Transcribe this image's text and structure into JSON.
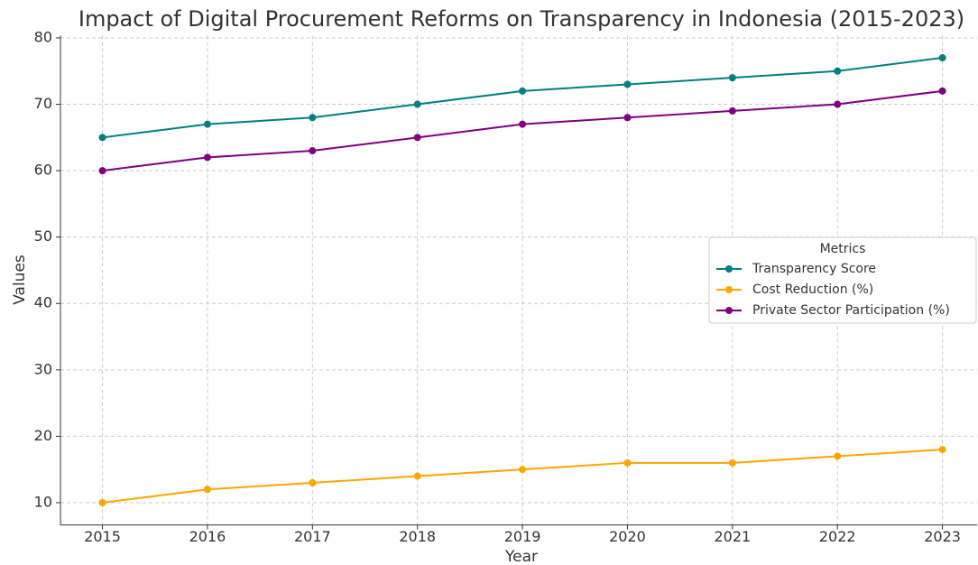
{
  "chart_data": {
    "type": "line",
    "title": "Impact of Digital Procurement Reforms on Transparency in Indonesia (2015-2023)",
    "xlabel": "Year",
    "ylabel": "Values",
    "x": [
      2015,
      2016,
      2017,
      2018,
      2019,
      2020,
      2021,
      2022,
      2023
    ],
    "series": [
      {
        "name": "Transparency Score",
        "color": "#008080",
        "values": [
          65,
          67,
          68,
          70,
          72,
          73,
          74,
          75,
          77
        ]
      },
      {
        "name": "Cost Reduction (%)",
        "color": "#ffa500",
        "values": [
          10,
          12,
          13,
          14,
          15,
          16,
          16,
          17,
          18
        ]
      },
      {
        "name": "Private Sector Participation (%)",
        "color": "#800080",
        "values": [
          60,
          62,
          63,
          65,
          67,
          68,
          69,
          70,
          72
        ]
      }
    ],
    "xlim": [
      2014.6,
      2023.33
    ],
    "xticks": [
      2015,
      2016,
      2017,
      2018,
      2019,
      2020,
      2021,
      2022,
      2023
    ],
    "ylim": [
      6.65,
      80.35
    ],
    "yticks": [
      10,
      20,
      30,
      40,
      50,
      60,
      70,
      80
    ],
    "grid": true,
    "legend": {
      "title": "Metrics",
      "loc": "center right"
    }
  }
}
